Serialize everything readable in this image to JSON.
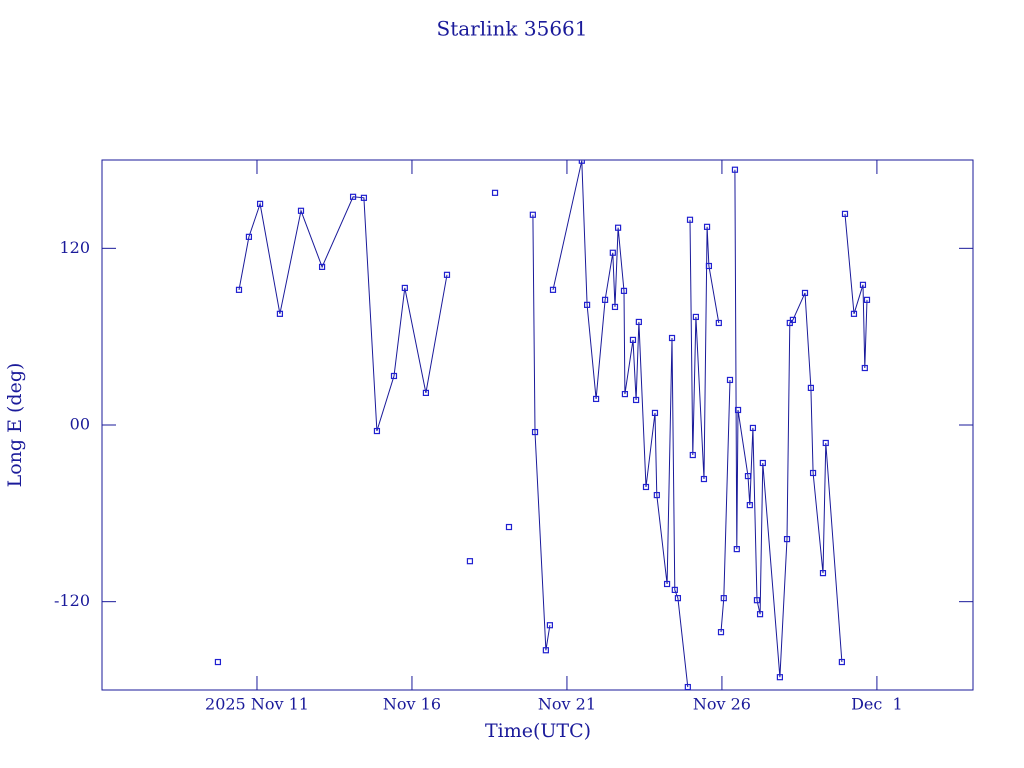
{
  "chart_data": {
    "type": "line",
    "title": "Starlink 35661",
    "xlabel": "Time(UTC)",
    "ylabel": "Long E (deg)",
    "color": "#1a1a9a",
    "marker_color": "#2020d0",
    "x": [
      9.74,
      null,
      10.42,
      10.74,
      11.1,
      11.74,
      12.42,
      13.1,
      14.1,
      14.45,
      14.87,
      15.42,
      15.77,
      16.45,
      17.13,
      null,
      17.87,
      null,
      18.68,
      null,
      19.13,
      null,
      19.9,
      19.97,
      20.32,
      20.45,
      null,
      20.55,
      21.48,
      21.65,
      21.94,
      22.23,
      22.48,
      22.55,
      22.65,
      22.84,
      22.87,
      23.13,
      23.23,
      23.32,
      23.55,
      23.84,
      23.9,
      24.23,
      24.39,
      24.48,
      24.58,
      24.9,
      null,
      24.97,
      25.06,
      25.16,
      25.42,
      25.52,
      25.58,
      25.9,
      null,
      25.97,
      26.06,
      26.26,
      null,
      26.42,
      26.48,
      26.52,
      26.84,
      26.9,
      27.0,
      27.13,
      27.23,
      27.32,
      27.87,
      28.1,
      28.19,
      28.29,
      28.68,
      28.87,
      28.94,
      29.26,
      29.35,
      29.87,
      null,
      29.97,
      30.26,
      30.55,
      30.61,
      30.68
    ],
    "values": [
      -161,
      null,
      91.8,
      127.8,
      150.2,
      75.5,
      145.5,
      107.4,
      155.0,
      154.3,
      -4.1,
      33.3,
      93.1,
      21.8,
      102,
      null,
      -92.5,
      null,
      157.7,
      null,
      -69.3,
      null,
      142.8,
      -4.8,
      -153,
      -136,
      null,
      91.8,
      179.5,
      81.6,
      17.7,
      85,
      117,
      80.2,
      134,
      91.1,
      21,
      57.8,
      17,
      70,
      -42.1,
      8.2,
      -47.6,
      -108,
      59.1,
      -112,
      -117.6,
      -178,
      null,
      139.4,
      -20.4,
      73.4,
      -36.7,
      134.6,
      108,
      69.3,
      null,
      -140.7,
      -117.6,
      30.6,
      null,
      173.4,
      -84.3,
      10.2,
      -34.7,
      -54.4,
      -2,
      -119,
      -128.5,
      -25.8,
      -171.3,
      -77.5,
      69.3,
      71.4,
      89.7,
      25.2,
      -32.6,
      -100.6,
      -12.2,
      -161,
      null,
      143.4,
      75.5,
      95.2,
      38.7,
      85
    ],
    "xlim": [
      6,
      34.1
    ],
    "ylim": [
      -180,
      180
    ],
    "xticks": [
      {
        "value": 11,
        "label": "2025 Nov 11"
      },
      {
        "value": 16,
        "label": "Nov 16"
      },
      {
        "value": 21,
        "label": "Nov 21"
      },
      {
        "value": 26,
        "label": "Nov 26"
      },
      {
        "value": 31,
        "label": "Dec  1"
      }
    ],
    "yticks": [
      -120,
      {
        "value": 0,
        "label": "00"
      },
      120
    ]
  }
}
